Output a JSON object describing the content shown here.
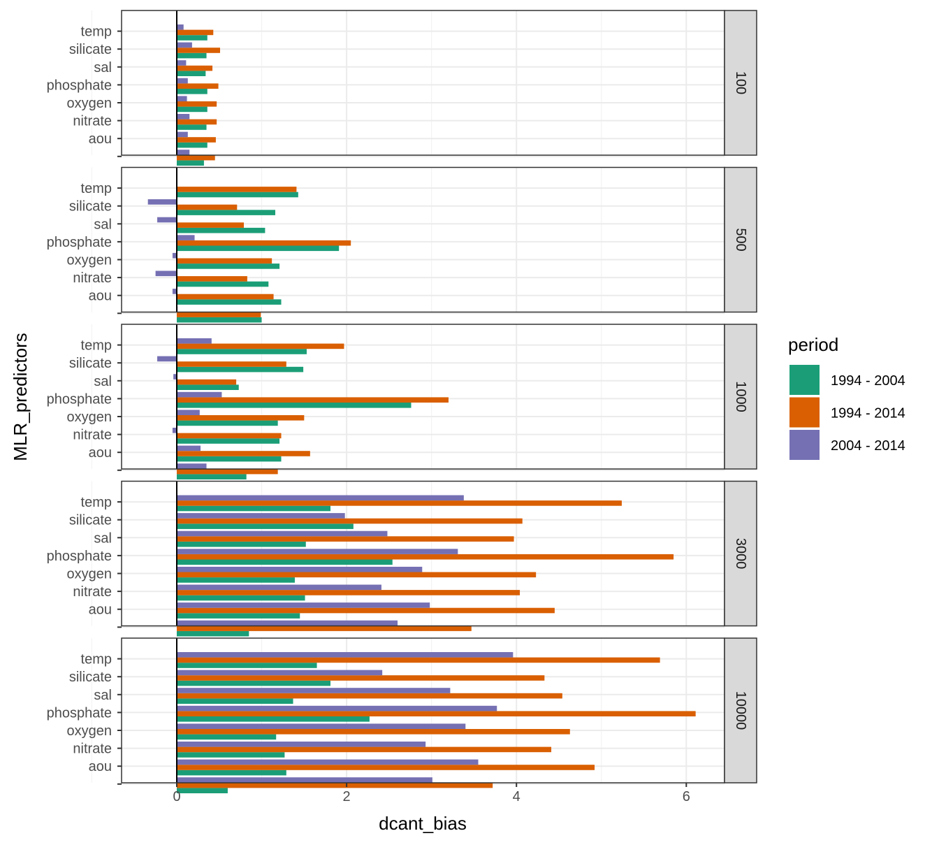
{
  "chart_data": {
    "type": "bar",
    "orientation": "horizontal",
    "facet_by": "",
    "xlabel": "dcant_bias",
    "ylabel": "MLR_predictors",
    "xlim": [
      -0.65,
      6.45
    ],
    "x_ticks": [
      0,
      2,
      4,
      6
    ],
    "grid": true,
    "legend": {
      "title": "period",
      "position": "right"
    },
    "categories": [
      "temp",
      "silicate",
      "sal",
      "phosphate",
      "oxygen",
      "nitrate",
      "aou",
      ""
    ],
    "series_colors": {
      "1994 - 2004": "#1b9e77",
      "1994 - 2014": "#d95f02",
      "2004 - 2014": "#7570b3"
    },
    "facets": [
      {
        "label": "100",
        "series": [
          {
            "name": "1994 - 2004",
            "values": [
              0.36,
              0.35,
              0.34,
              0.36,
              0.36,
              0.35,
              0.36,
              0.32
            ]
          },
          {
            "name": "1994 - 2014",
            "values": [
              0.43,
              0.51,
              0.42,
              0.49,
              0.47,
              0.47,
              0.46,
              0.45
            ]
          },
          {
            "name": "2004 - 2014",
            "values": [
              0.08,
              0.18,
              0.11,
              0.13,
              0.12,
              0.15,
              0.13,
              0.15
            ]
          }
        ]
      },
      {
        "label": "500",
        "series": [
          {
            "name": "1994 - 2004",
            "values": [
              1.43,
              1.16,
              1.04,
              1.91,
              1.21,
              1.08,
              1.23,
              1.0
            ]
          },
          {
            "name": "1994 - 2014",
            "values": [
              1.41,
              0.71,
              0.79,
              2.05,
              1.12,
              0.83,
              1.14,
              0.99
            ]
          },
          {
            "name": "2004 - 2014",
            "values": [
              0.0,
              -0.34,
              -0.23,
              0.21,
              -0.05,
              -0.25,
              -0.05,
              0.01
            ]
          }
        ]
      },
      {
        "label": "1000",
        "series": [
          {
            "name": "1994 - 2004",
            "values": [
              1.53,
              1.49,
              0.73,
              2.76,
              1.19,
              1.21,
              1.23,
              0.82
            ]
          },
          {
            "name": "1994 - 2014",
            "values": [
              1.97,
              1.29,
              0.7,
              3.2,
              1.5,
              1.23,
              1.57,
              1.19
            ]
          },
          {
            "name": "2004 - 2014",
            "values": [
              0.41,
              -0.23,
              -0.04,
              0.53,
              0.27,
              -0.05,
              0.28,
              0.35
            ]
          }
        ]
      },
      {
        "label": "3000",
        "series": [
          {
            "name": "1994 - 2004",
            "values": [
              1.81,
              2.08,
              1.52,
              2.54,
              1.39,
              1.51,
              1.45,
              0.85
            ]
          },
          {
            "name": "1994 - 2014",
            "values": [
              5.24,
              4.07,
              3.97,
              5.85,
              4.23,
              4.04,
              4.45,
              3.47
            ]
          },
          {
            "name": "2004 - 2014",
            "values": [
              3.38,
              1.98,
              2.48,
              3.31,
              2.89,
              2.41,
              2.98,
              2.6
            ]
          }
        ]
      },
      {
        "label": "10000",
        "series": [
          {
            "name": "1994 - 2004",
            "values": [
              1.65,
              1.81,
              1.37,
              2.27,
              1.17,
              1.27,
              1.29,
              0.6
            ]
          },
          {
            "name": "1994 - 2014",
            "values": [
              5.69,
              4.33,
              4.54,
              6.11,
              4.63,
              4.41,
              4.92,
              3.72
            ]
          },
          {
            "name": "2004 - 2014",
            "values": [
              3.96,
              2.42,
              3.22,
              3.77,
              3.4,
              2.93,
              3.55,
              3.01
            ]
          }
        ]
      }
    ]
  }
}
